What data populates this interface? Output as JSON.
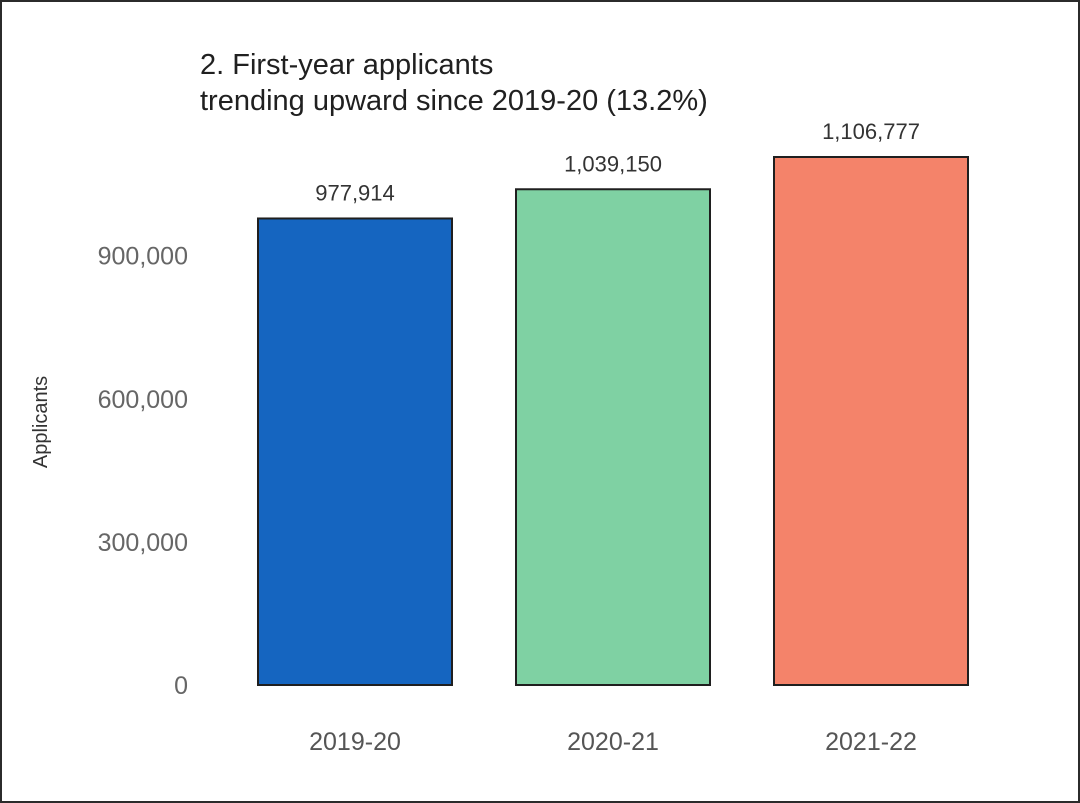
{
  "chart_data": {
    "type": "bar",
    "title": [
      "2. First-year applicants",
      "trending upward since 2019-20 (13.2%)"
    ],
    "xlabel": "",
    "ylabel": "Applicants",
    "ylim": [
      0,
      1106777
    ],
    "yticks": [
      0,
      300000,
      600000,
      900000
    ],
    "ytick_labels": [
      "0",
      "300,000",
      "600,000",
      "900,000"
    ],
    "categories": [
      "2019-20",
      "2020-21",
      "2021-22"
    ],
    "values": [
      977914,
      1039150,
      1106777
    ],
    "data_labels": [
      "977,914",
      "1,039,150",
      "1,106,777"
    ],
    "colors": [
      "#1565c0",
      "#7fd1a3",
      "#f4836a"
    ],
    "grid": false,
    "legend": "none"
  }
}
